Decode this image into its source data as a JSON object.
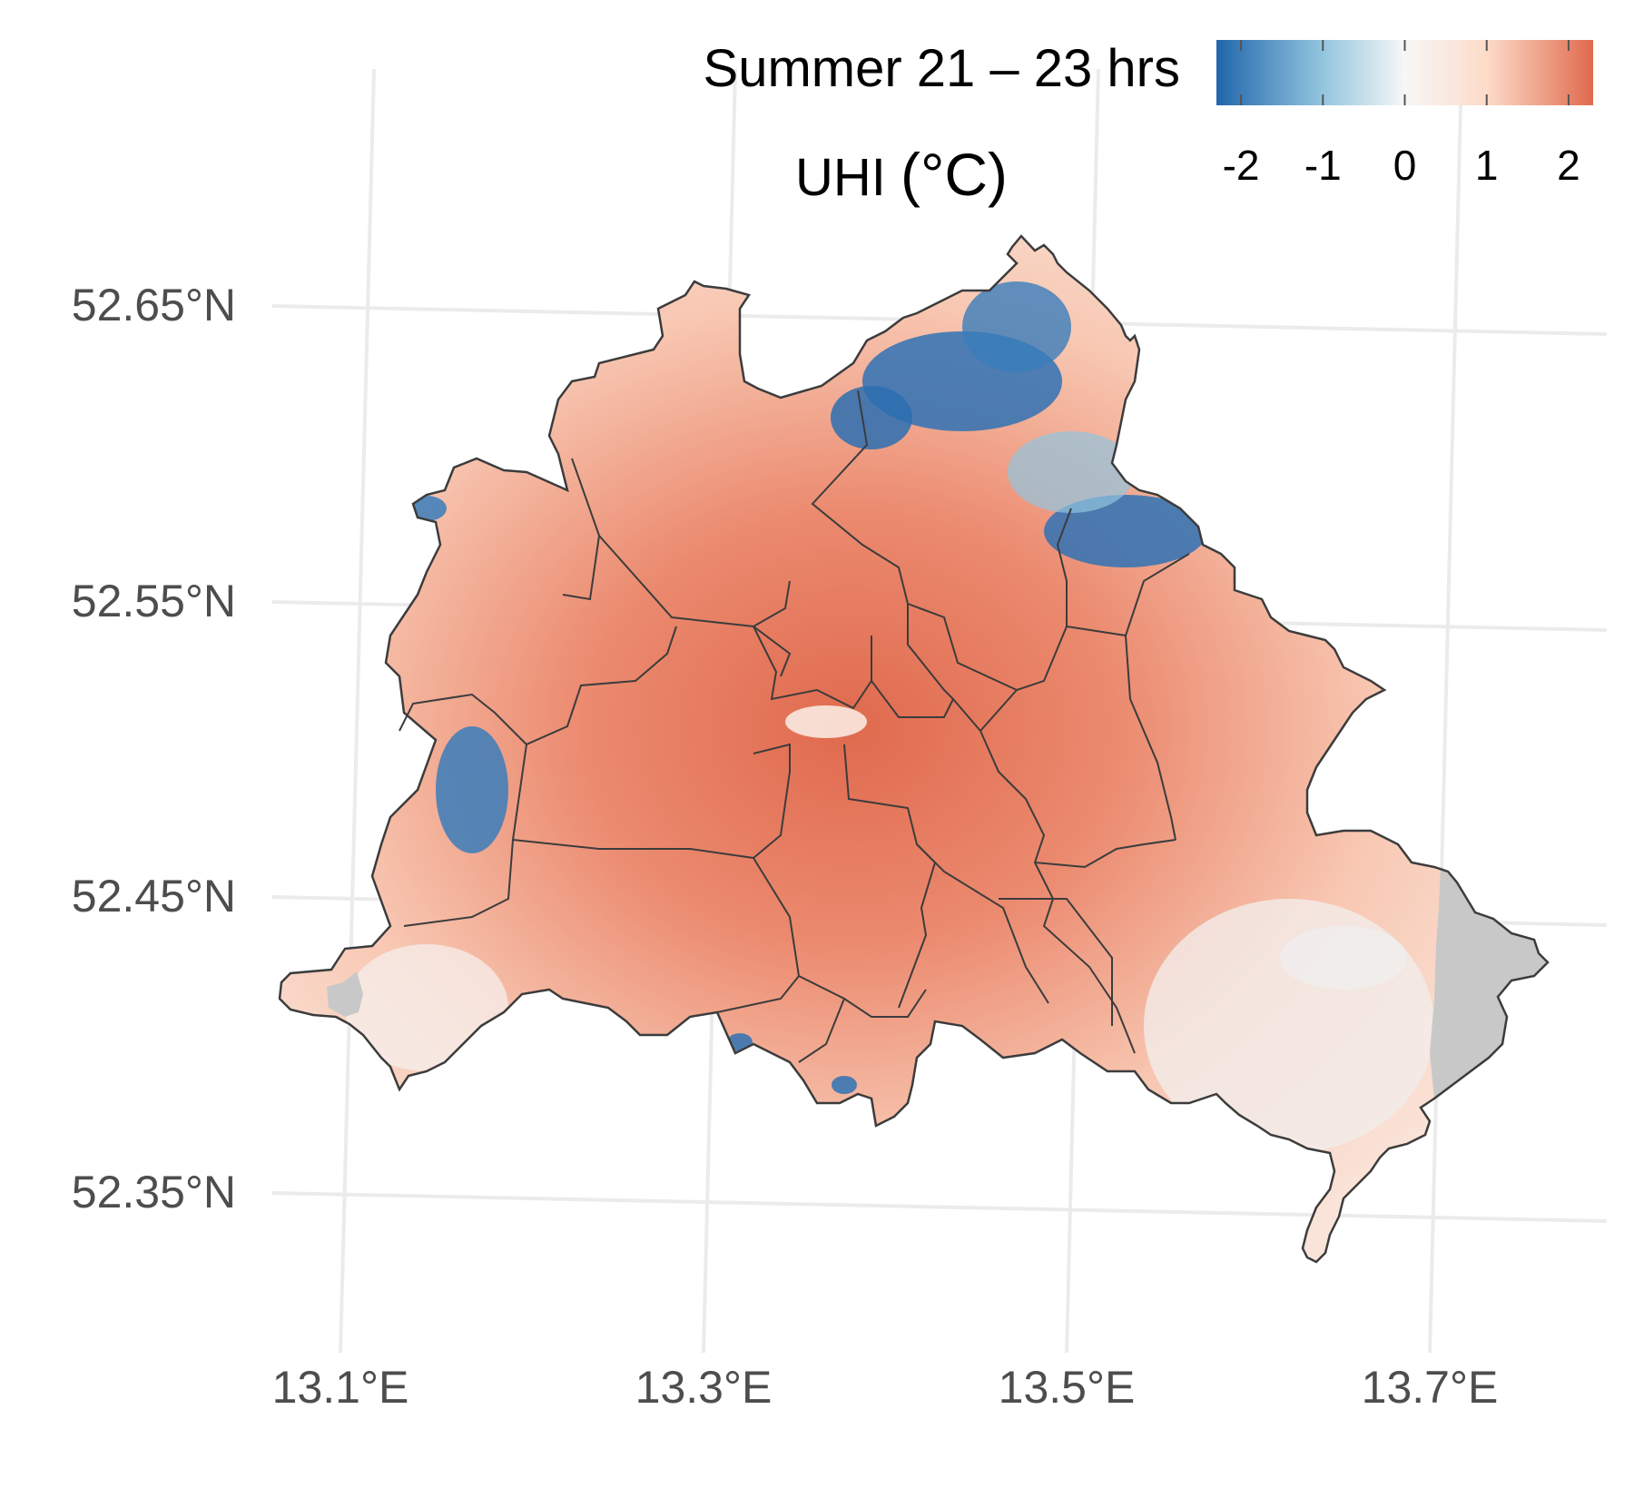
{
  "title": {
    "line1": "Summer 21 – 23 hrs",
    "line2_prefix": "UHI ",
    "line2_unit": "(°C)"
  },
  "colors": {
    "strong_blue": "#2166ac",
    "light_blue": "#92c5de",
    "neutral": "#f7f7f7",
    "light_red": "#fddbc7",
    "strong_red": "#e06a4e",
    "no_data": "#c8c8c8",
    "border": "#3c3c3c",
    "grid": "#ebebeb"
  },
  "legend": {
    "ticks": [
      "-2",
      "-1",
      "0",
      "1",
      "2"
    ],
    "values": [
      -2,
      -1,
      0,
      1,
      2
    ],
    "range": [
      -2.3,
      2.3
    ]
  },
  "axes": {
    "lat_labels": [
      "52.65°N",
      "52.55°N",
      "52.45°N",
      "52.35°N"
    ],
    "lon_labels": [
      "13.1°E",
      "13.3°E",
      "13.5°E",
      "13.7°E"
    ]
  },
  "map": {
    "subject": "Berlin districts",
    "variable": "Urban heat island intensity",
    "pattern": "warmest in the city centre (about +2 °C), cooler to negative values in forested north-east and west edges"
  }
}
